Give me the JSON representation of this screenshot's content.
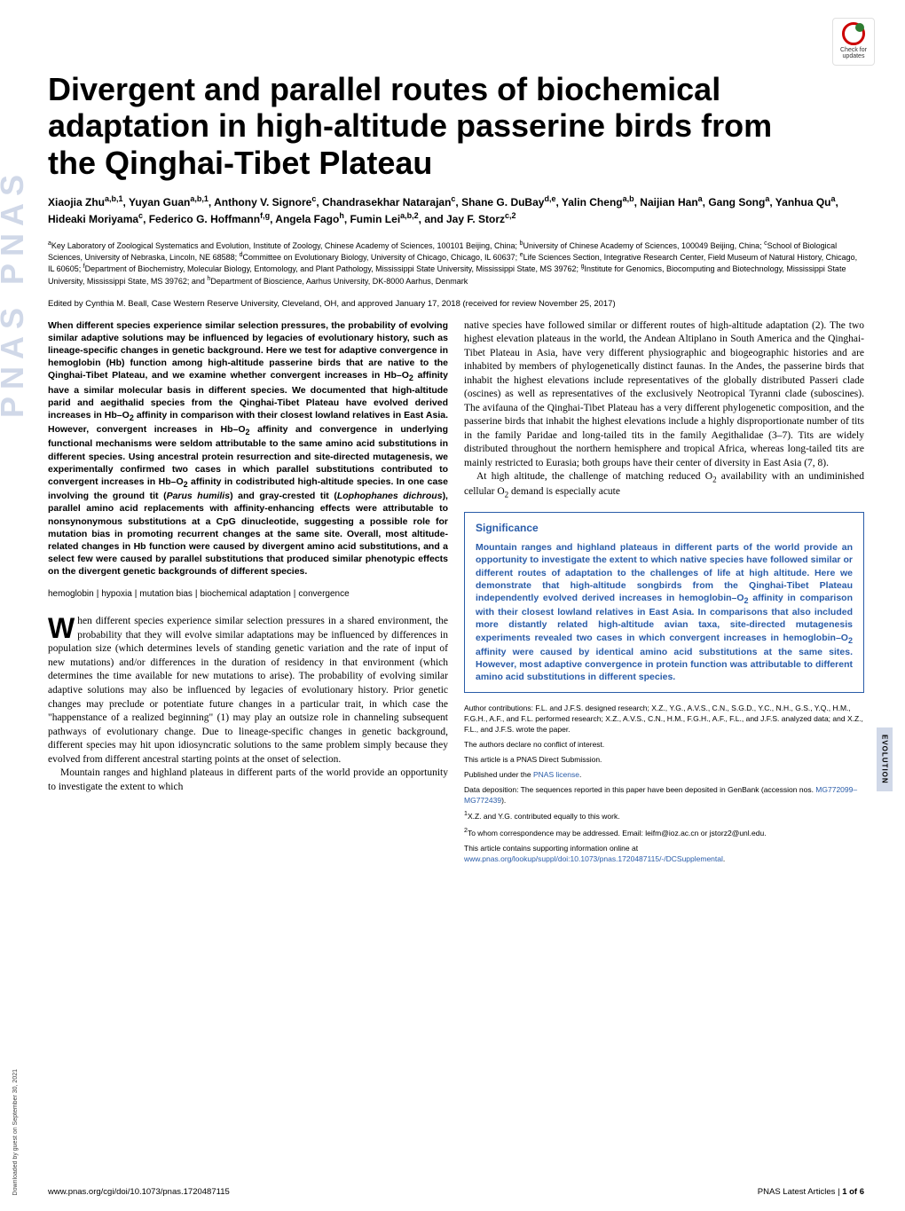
{
  "journal_tab": "PNAS PNAS",
  "section_tab": "EVOLUTION",
  "download_note": "Downloaded by guest on September 30, 2021",
  "badge": {
    "line1": "Check for",
    "line2": "updates"
  },
  "title": "Divergent and parallel routes of biochemical adaptation in high-altitude passerine birds from the Qinghai-Tibet Plateau",
  "authors_html": "Xiaojia Zhu<sup>a,b,1</sup>, Yuyan Guan<sup>a,b,1</sup>, Anthony V. Signore<sup>c</sup>, Chandrasekhar Natarajan<sup>c</sup>, Shane G. DuBay<sup>d,e</sup>, Yalin Cheng<sup>a,b</sup>, Naijian Han<sup>a</sup>, Gang Song<sup>a</sup>, Yanhua Qu<sup>a</sup>, Hideaki Moriyama<sup>c</sup>, Federico G. Hoffmann<sup>f,g</sup>, Angela Fago<sup>h</sup>, Fumin Lei<sup>a,b,2</sup>, and Jay F. Storz<sup>c,2</sup>",
  "affiliations_html": "<sup>a</sup>Key Laboratory of Zoological Systematics and Evolution, Institute of Zoology, Chinese Academy of Sciences, 100101 Beijing, China; <sup>b</sup>University of Chinese Academy of Sciences, 100049 Beijing, China; <sup>c</sup>School of Biological Sciences, University of Nebraska, Lincoln, NE 68588; <sup>d</sup>Committee on Evolutionary Biology, University of Chicago, Chicago, IL 60637; <sup>e</sup>Life Sciences Section, Integrative Research Center, Field Museum of Natural History, Chicago, IL 60605; <sup>f</sup>Department of Biochemistry, Molecular Biology, Entomology, and Plant Pathology, Mississippi State University, Mississippi State, MS 39762; <sup>g</sup>Institute for Genomics, Biocomputing and Biotechnology, Mississippi State University, Mississippi State, MS 39762; and <sup>h</sup>Department of Bioscience, Aarhus University, DK-8000 Aarhus, Denmark",
  "edited": "Edited by Cynthia M. Beall, Case Western Reserve University, Cleveland, OH, and approved January 17, 2018 (received for review November 25, 2017)",
  "abstract_html": "When different species experience similar selection pressures, the probability of evolving similar adaptive solutions may be influenced by legacies of evolutionary history, such as lineage-specific changes in genetic background. Here we test for adaptive convergence in hemoglobin (Hb) function among high-altitude passerine birds that are native to the Qinghai-Tibet Plateau, and we examine whether convergent increases in Hb–O<span class='sub2'>2</span> affinity have a similar molecular basis in different species. We documented that high-altitude parid and aegithalid species from the Qinghai-Tibet Plateau have evolved derived increases in Hb–O<span class='sub2'>2</span> affinity in comparison with their closest lowland relatives in East Asia. However, convergent increases in Hb–O<span class='sub2'>2</span> affinity and convergence in underlying functional mechanisms were seldom attributable to the same amino acid substitutions in different species. Using ancestral protein resurrection and site-directed mutagenesis, we experimentally confirmed two cases in which parallel substitutions contributed to convergent increases in Hb–O<span class='sub2'>2</span> affinity in codistributed high-altitude species. In one case involving the ground tit (<i>Parus humilis</i>) and gray-crested tit (<i>Lophophanes dichrous</i>), parallel amino acid replacements with affinity-enhancing effects were attributable to nonsynonymous substitutions at a CpG dinucleotide, suggesting a possible role for mutation bias in promoting recurrent changes at the same site. Overall, most altitude-related changes in Hb function were caused by divergent amino acid substitutions, and a select few were caused by parallel substitutions that produced similar phenotypic effects on the divergent genetic backgrounds of different species.",
  "keywords": [
    "hemoglobin",
    "hypoxia",
    "mutation bias",
    "biochemical adaptation",
    "convergence"
  ],
  "body_left_p1_html": "hen different species experience similar selection pressures in a shared environment, the probability that they will evolve similar adaptations may be influenced by differences in population size (which determines levels of standing genetic variation and the rate of input of new mutations) and/or differences in the duration of residency in that environment (which determines the time available for new mutations to arise). The probability of evolving similar adaptive solutions may also be influenced by legacies of evolutionary history. Prior genetic changes may preclude or potentiate future changes in a particular trait, in which case the \"happenstance of a realized beginning\" (1) may play an outsize role in channeling subsequent pathways of evolutionary change. Due to lineage-specific changes in genetic background, different species may hit upon idiosyncratic solutions to the same problem simply because they evolved from different ancestral starting points at the onset of selection.",
  "body_left_p2": "Mountain ranges and highland plateaus in different parts of the world provide an opportunity to investigate the extent to which",
  "body_right_p1": "native species have followed similar or different routes of high-altitude adaptation (2). The two highest elevation plateaus in the world, the Andean Altiplano in South America and the Qinghai-Tibet Plateau in Asia, have very different physiographic and biogeographic histories and are inhabited by members of phylogenetically distinct faunas. In the Andes, the passerine birds that inhabit the highest elevations include representatives of the globally distributed Passeri clade (oscines) as well as representatives of the exclusively Neotropical Tyranni clade (suboscines). The avifauna of the Qinghai-Tibet Plateau has a very different phylogenetic composition, and the passerine birds that inhabit the highest elevations include a highly disproportionate number of tits in the family Paridae and long-tailed tits in the family Aegithalidae (3–7). Tits are widely distributed throughout the northern hemisphere and tropical Africa, whereas long-tailed tits are mainly restricted to Eurasia; both groups have their center of diversity in East Asia (7, 8).",
  "body_right_p2_html": "At high altitude, the challenge of matching reduced O<span class='sub2'>2</span> availability with an undiminished cellular O<span class='sub2'>2</span> demand is especially acute",
  "significance": {
    "heading": "Significance",
    "body_html": "Mountain ranges and highland plateaus in different parts of the world provide an opportunity to investigate the extent to which native species have followed similar or different routes of adaptation to the challenges of life at high altitude. Here we demonstrate that high-altitude songbirds from the Qinghai-Tibet Plateau independently evolved derived increases in hemoglobin–O<span class='sub2'>2</span> affinity in comparison with their closest lowland relatives in East Asia. In comparisons that also included more distantly related high-altitude avian taxa, site-directed mutagenesis experiments revealed two cases in which convergent increases in hemoglobin–O<span class='sub2'>2</span> affinity were caused by identical amino acid substitutions at the same sites. However, most adaptive convergence in protein function was attributable to different amino acid substitutions in different species."
  },
  "meta": {
    "contributions": "Author contributions: F.L. and J.F.S. designed research; X.Z., Y.G., A.V.S., C.N., S.G.D., Y.C., N.H., G.S., Y.Q., H.M., F.G.H., A.F., and F.L. performed research; X.Z., A.V.S., C.N., H.M., F.G.H., A.F., F.L., and J.F.S. analyzed data; and X.Z., F.L., and J.F.S. wrote the paper.",
    "conflict": "The authors declare no conflict of interest.",
    "direct": "This article is a PNAS Direct Submission.",
    "license_pre": "Published under the ",
    "license_link": "PNAS license",
    "license_post": ".",
    "deposition_pre": "Data deposition: The sequences reported in this paper have been deposited in GenBank (accession nos. ",
    "deposition_link": "MG772099–MG772439",
    "deposition_post": ").",
    "note1": "X.Z. and Y.G. contributed equally to this work.",
    "note2": "To whom correspondence may be addressed. Email: leifm@ioz.ac.cn or jstorz2@unl.edu.",
    "supporting_pre": "This article contains supporting information online at ",
    "supporting_link": "www.pnas.org/lookup/suppl/doi:10.1073/pnas.1720487115/-/DCSupplemental",
    "supporting_post": "."
  },
  "footer": {
    "left": "www.pnas.org/cgi/doi/10.1073/pnas.1720487115",
    "right_pre": "PNAS Latest Articles",
    "right_sep": " | ",
    "right_page": "1 of 6"
  },
  "colors": {
    "link": "#2a5ca8",
    "tab_bg": "#d0d8e8",
    "sig_border": "#2a5ca8",
    "sig_text": "#2a5ca8"
  }
}
